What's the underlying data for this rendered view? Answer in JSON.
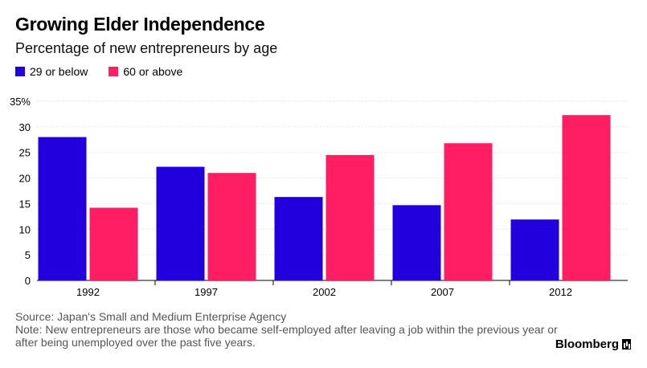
{
  "chart_data": {
    "type": "bar",
    "title": "Growing Elder Independence",
    "subtitle": "Percentage of new entrepreneurs by age",
    "categories": [
      "1992",
      "1997",
      "2002",
      "2007",
      "2012"
    ],
    "series": [
      {
        "name": "29 or below",
        "color": "#2200dd",
        "values": [
          28.0,
          22.2,
          16.3,
          14.7,
          11.9
        ]
      },
      {
        "name": "60 or above",
        "color": "#ff1e64",
        "values": [
          14.2,
          21.0,
          24.5,
          26.8,
          32.3
        ]
      }
    ],
    "ylim": [
      0,
      35
    ],
    "yticks": [
      0,
      5,
      10,
      15,
      20,
      25,
      30,
      35
    ],
    "ytick_labels": [
      "0",
      "5",
      "10",
      "15",
      "20",
      "25",
      "30",
      "35%"
    ],
    "xlabel": "",
    "ylabel": "",
    "grid": true,
    "legend_position": "top-left"
  },
  "footer": {
    "source": "Source: Japan's Small and Medium Enterprise Agency",
    "note": "Note: New entrepreneurs are those who became self-employed after leaving a job within the previous year or after being unemployed over the past five years."
  },
  "brand": "Bloomberg"
}
